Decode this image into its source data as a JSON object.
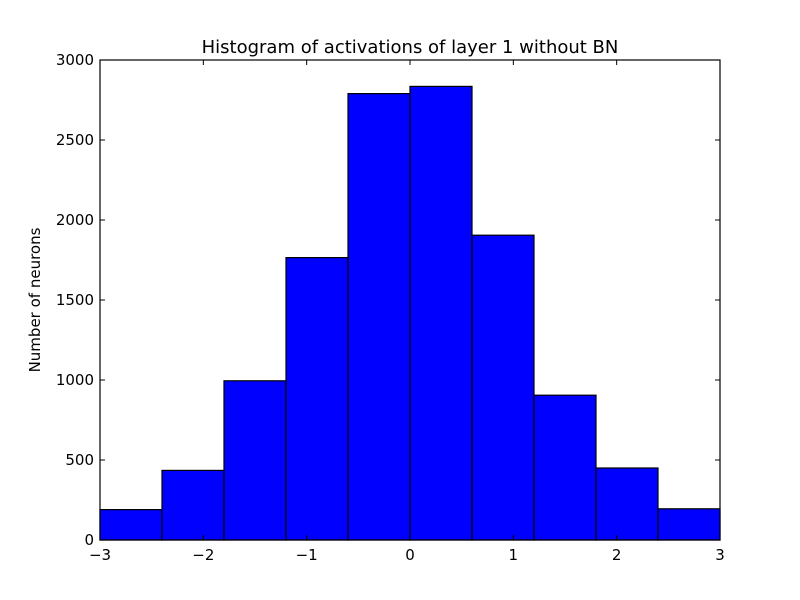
{
  "chart_data": {
    "type": "bar",
    "title": "Histogram of activations of layer 1  without BN",
    "xlabel": "",
    "ylabel": "Number of neurons",
    "xlim": [
      -3,
      3
    ],
    "ylim": [
      0,
      3000
    ],
    "bins": [
      {
        "x0": -3.0,
        "x1": -2.4,
        "value": 190
      },
      {
        "x0": -2.4,
        "x1": -1.8,
        "value": 435
      },
      {
        "x0": -1.8,
        "x1": -1.2,
        "value": 995
      },
      {
        "x0": -1.2,
        "x1": -0.6,
        "value": 1765
      },
      {
        "x0": -0.6,
        "x1": 0.0,
        "value": 2790
      },
      {
        "x0": 0.0,
        "x1": 0.6,
        "value": 2835
      },
      {
        "x0": 0.6,
        "x1": 1.2,
        "value": 1905
      },
      {
        "x0": 1.2,
        "x1": 1.8,
        "value": 905
      },
      {
        "x0": 1.8,
        "x1": 2.4,
        "value": 450
      },
      {
        "x0": 2.4,
        "x1": 3.0,
        "value": 195
      }
    ],
    "x_ticks": [
      {
        "value": -3,
        "label": "−3"
      },
      {
        "value": -2,
        "label": "−2"
      },
      {
        "value": -1,
        "label": "−1"
      },
      {
        "value": 0,
        "label": "0"
      },
      {
        "value": 1,
        "label": "1"
      },
      {
        "value": 2,
        "label": "2"
      },
      {
        "value": 3,
        "label": "3"
      }
    ],
    "y_ticks": [
      {
        "value": 0,
        "label": "0"
      },
      {
        "value": 500,
        "label": "500"
      },
      {
        "value": 1000,
        "label": "1000"
      },
      {
        "value": 1500,
        "label": "1500"
      },
      {
        "value": 2000,
        "label": "2000"
      },
      {
        "value": 2500,
        "label": "2500"
      },
      {
        "value": 3000,
        "label": "3000"
      }
    ],
    "bar_color": "#0000ff",
    "edge_color": "#000000",
    "grid": false,
    "legend": "none"
  }
}
